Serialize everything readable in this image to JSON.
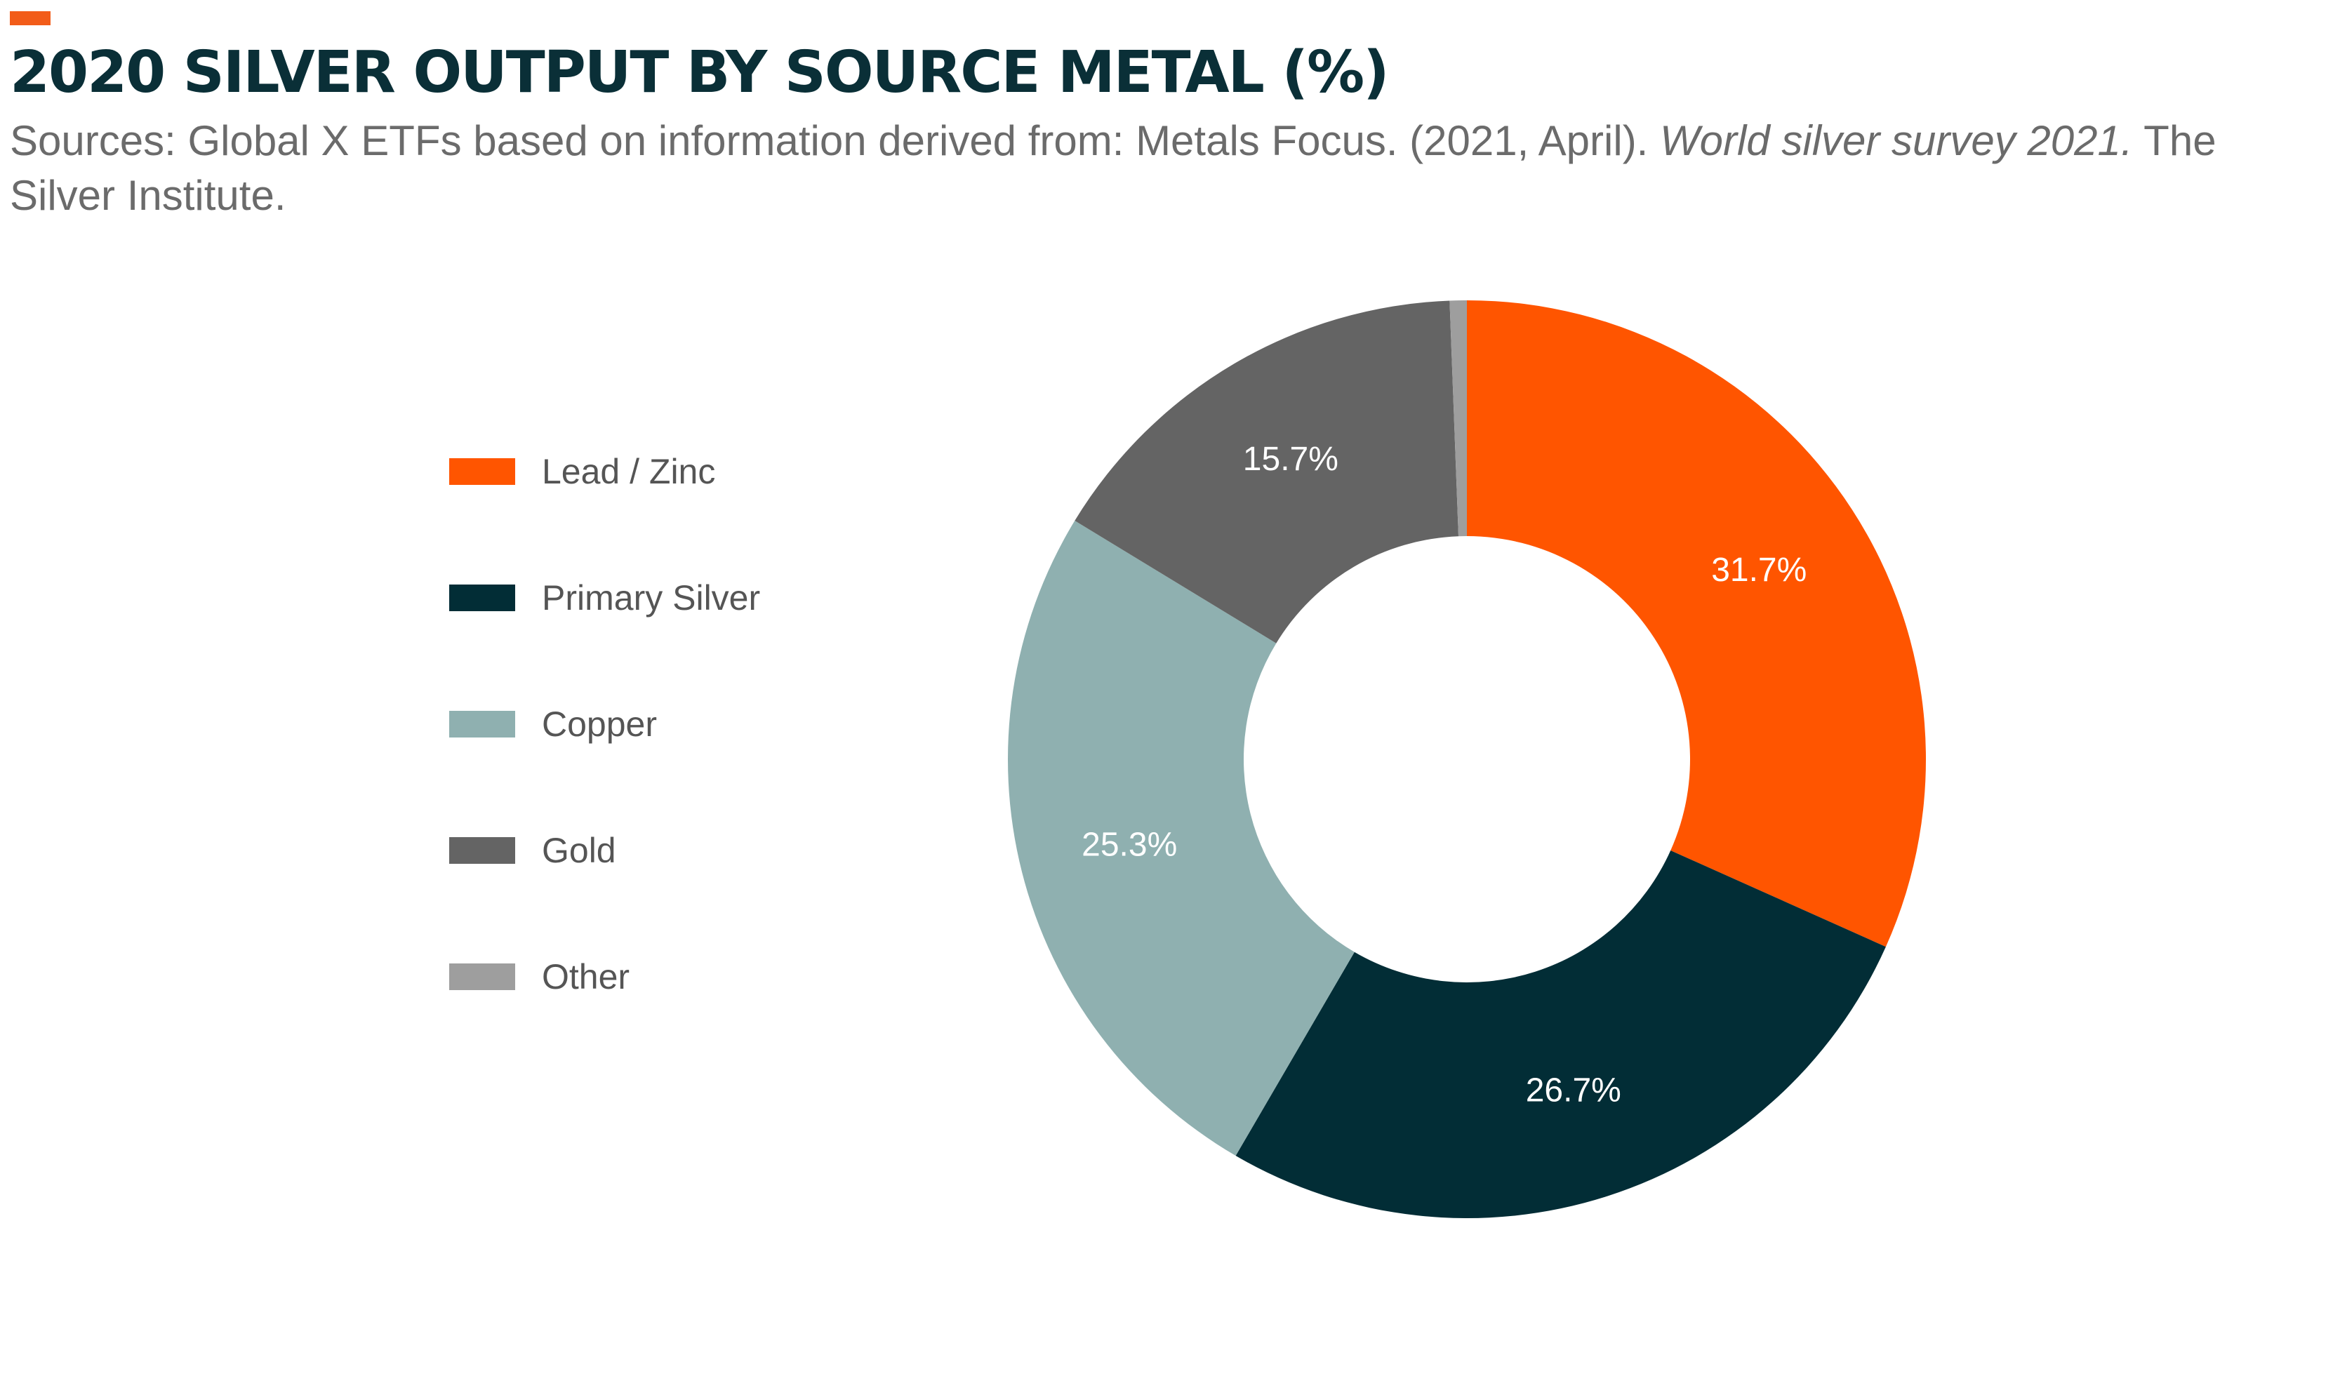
{
  "header": {
    "title": "2020 SILVER OUTPUT BY SOURCE METAL (%)",
    "sources_prefix": "Sources: Global X ETFs based on information derived from: Metals Focus. (2021, April). ",
    "sources_work": "World silver survey 2021.",
    "sources_suffix": " The Silver Institute.",
    "accent_color": "#f25c19"
  },
  "chart_data": {
    "type": "pie",
    "variant": "donut",
    "title": "2020 SILVER OUTPUT BY SOURCE METAL (%)",
    "legend_position": "left",
    "categories": [
      "Lead / Zinc",
      "Primary Silver",
      "Copper",
      "Gold",
      "Other"
    ],
    "values": [
      31.7,
      26.7,
      25.3,
      15.7,
      0.6
    ],
    "value_labels": [
      "31.7%",
      "26.7%",
      "25.3%",
      "15.7%",
      ""
    ],
    "colors": [
      "#ff5500",
      "#022d36",
      "#8fb0b0",
      "#646464",
      "#9e9e9e"
    ]
  }
}
